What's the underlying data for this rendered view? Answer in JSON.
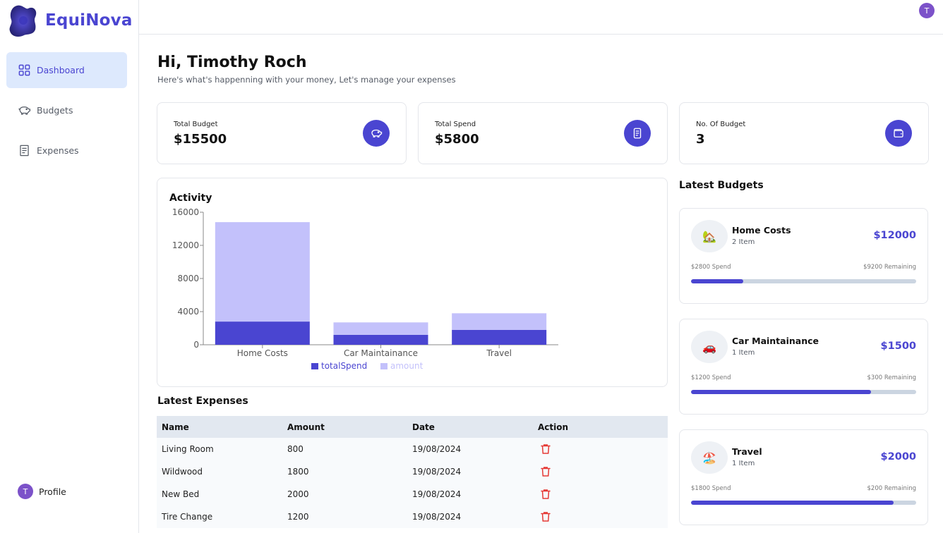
{
  "app": {
    "name": "EquiNova"
  },
  "user": {
    "initial": "T"
  },
  "sidebar": {
    "items": [
      {
        "label": "Dashboard",
        "icon": "grid-icon",
        "active": true
      },
      {
        "label": "Budgets",
        "icon": "piggy-bank-icon",
        "active": false
      },
      {
        "label": "Expenses",
        "icon": "document-icon",
        "active": false
      }
    ],
    "profile_label": "Profile"
  },
  "header": {
    "greeting": "Hi, Timothy Roch",
    "subtitle": "Here's what's happenning with your money, Let's manage your expenses"
  },
  "stats": [
    {
      "label": "Total Budget",
      "value": "$15500",
      "icon": "piggy-bank-icon"
    },
    {
      "label": "Total Spend",
      "value": "$5800",
      "icon": "receipt-icon"
    },
    {
      "label": "No. Of Budget",
      "value": "3",
      "icon": "wallet-icon"
    }
  ],
  "colors": {
    "accent": "#4a45d1",
    "amount": "#c3c1fb",
    "danger": "#e53935"
  },
  "chart_data": {
    "type": "bar",
    "stacked": true,
    "title": "Activity",
    "categories": [
      "Home Costs",
      "Car Maintainance",
      "Travel"
    ],
    "series": [
      {
        "name": "totalSpend",
        "values": [
          2800,
          1200,
          1800
        ],
        "color": "#4a45d1"
      },
      {
        "name": "amount",
        "values": [
          12000,
          1500,
          2000
        ],
        "color": "#c3c1fb"
      }
    ],
    "yticks": [
      0,
      4000,
      8000,
      12000,
      16000
    ],
    "ylim": [
      0,
      16000
    ],
    "legend": "bottom"
  },
  "expenses": {
    "title": "Latest Expenses",
    "columns": [
      "Name",
      "Amount",
      "Date",
      "Action"
    ],
    "rows": [
      {
        "name": "Living Room",
        "amount": "800",
        "date": "19/08/2024"
      },
      {
        "name": "Wildwood",
        "amount": "1800",
        "date": "19/08/2024"
      },
      {
        "name": "New Bed",
        "amount": "2000",
        "date": "19/08/2024"
      },
      {
        "name": "Tire Change",
        "amount": "1200",
        "date": "19/08/2024"
      }
    ]
  },
  "budgets": {
    "title": "Latest Budgets",
    "items": [
      {
        "name": "Home Costs",
        "items": "2 Item",
        "total": "$12000",
        "spend": "$2800 Spend",
        "remaining": "$9200 Remaining",
        "emoji": "🏡",
        "progress": 0.233
      },
      {
        "name": "Car Maintainance",
        "items": "1 Item",
        "total": "$1500",
        "spend": "$1200 Spend",
        "remaining": "$300 Remaining",
        "emoji": "🚗",
        "progress": 0.8
      },
      {
        "name": "Travel",
        "items": "1 Item",
        "total": "$2000",
        "spend": "$1800 Spend",
        "remaining": "$200 Remaining",
        "emoji": "🏖️",
        "progress": 0.9
      }
    ]
  }
}
